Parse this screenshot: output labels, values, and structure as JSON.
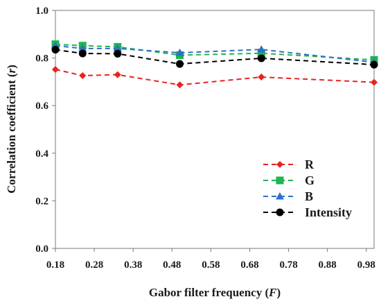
{
  "chart_data": {
    "type": "line",
    "xlabel": {
      "main": "Gabor filter frequency (",
      "var": "F",
      "tail": ")"
    },
    "ylabel": {
      "main": "Correlation coefficient (",
      "var": "r",
      "tail": ")"
    },
    "xlim": [
      0.18,
      1.0
    ],
    "ylim": [
      0.0,
      1.0
    ],
    "x_ticks": [
      "0.18",
      "0.28",
      "0.38",
      "0.48",
      "0.58",
      "0.68",
      "0.78",
      "0.88",
      "0.98"
    ],
    "x_tick_values": [
      0.18,
      0.28,
      0.38,
      0.48,
      0.58,
      0.68,
      0.78,
      0.88,
      0.98
    ],
    "y_ticks": [
      "0.0",
      "0.2",
      "0.4",
      "0.6",
      "0.8",
      "1.0"
    ],
    "y_tick_values": [
      0.0,
      0.2,
      0.4,
      0.6,
      0.8,
      1.0
    ],
    "grid": false,
    "legend_position": "bottom-right",
    "x": [
      0.18,
      0.25,
      0.34,
      0.5,
      0.71,
      1.0
    ],
    "series": [
      {
        "name": "R",
        "color": "#e8221f",
        "marker": "diamond",
        "values": [
          0.752,
          0.726,
          0.73,
          0.687,
          0.72,
          0.698
        ]
      },
      {
        "name": "G",
        "color": "#1fb552",
        "marker": "square",
        "values": [
          0.858,
          0.852,
          0.847,
          0.812,
          0.82,
          0.792
        ]
      },
      {
        "name": "B",
        "color": "#2f6fc7",
        "marker": "triangle",
        "values": [
          0.852,
          0.84,
          0.84,
          0.822,
          0.836,
          0.782
        ]
      },
      {
        "name": "Intensity",
        "color": "#000000",
        "marker": "circle",
        "values": [
          0.835,
          0.819,
          0.818,
          0.775,
          0.799,
          0.772
        ]
      }
    ]
  }
}
